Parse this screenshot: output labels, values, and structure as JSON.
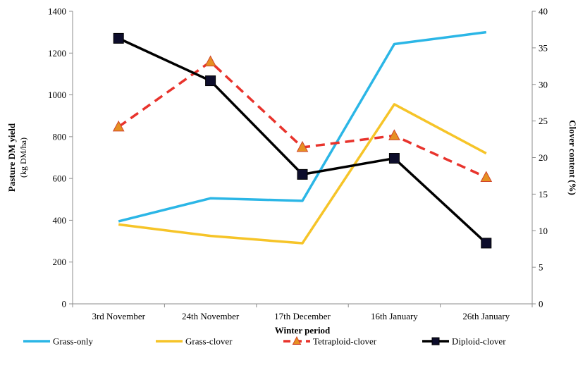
{
  "chart_data": {
    "type": "line",
    "categories": [
      "3rd November",
      "24th November",
      "17th December",
      "16th January",
      "26th January"
    ],
    "xlabel": "Winter period",
    "ylabel": "Pasture DM yield",
    "ylabel_sub": "(kg DM/ha)",
    "ylim": [
      0,
      1400
    ],
    "yticks": [
      0,
      200,
      400,
      600,
      800,
      1000,
      1200,
      1400
    ],
    "y2label": "Clover content (%)",
    "y2lim": [
      0,
      40
    ],
    "y2ticks": [
      0,
      5,
      10,
      15,
      20,
      25,
      30,
      35,
      40
    ],
    "grid": false,
    "legend_position": "bottom",
    "series": [
      {
        "name": "Grass-only",
        "axis": "left",
        "values": [
          395,
          505,
          493,
          1243,
          1300
        ],
        "color": "#2bb6e6",
        "dash": false,
        "marker": "none"
      },
      {
        "name": "Grass-clover",
        "axis": "left",
        "values": [
          380,
          325,
          290,
          955,
          720
        ],
        "color": "#f6c428",
        "dash": false,
        "marker": "none"
      },
      {
        "name": "Tetraploid-clover",
        "axis": "right",
        "values": [
          24.2,
          33.1,
          21.4,
          23.0,
          17.3
        ],
        "color": "#e8332c",
        "dash": true,
        "marker": "triangle",
        "marker_color": "#e69022"
      },
      {
        "name": "Diploid-clover",
        "axis": "right",
        "values": [
          36.3,
          30.5,
          17.7,
          19.9,
          8.3
        ],
        "color": "#000000",
        "dash": false,
        "marker": "square",
        "marker_color": "#0d0d2b"
      }
    ]
  }
}
